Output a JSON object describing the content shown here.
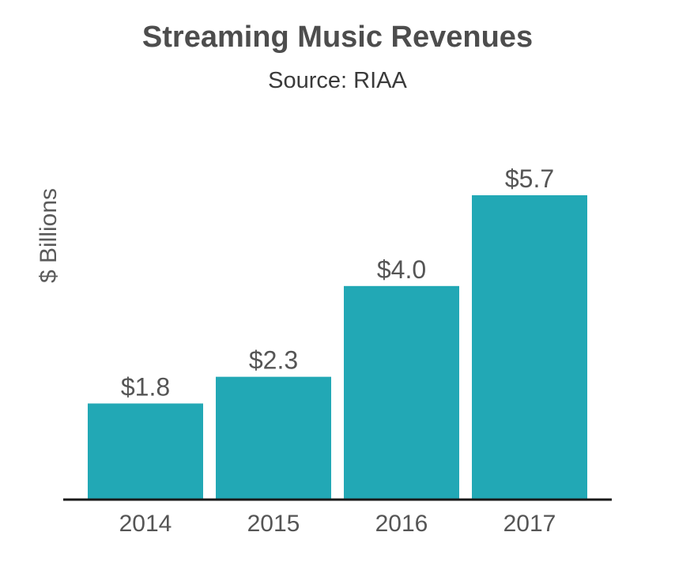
{
  "chart_data": {
    "type": "bar",
    "title": "Streaming Music Revenues",
    "subtitle": "Source: RIAA",
    "ylabel": "$ Billions",
    "categories": [
      "2014",
      "2015",
      "2016",
      "2017"
    ],
    "values": [
      1.8,
      2.3,
      4.0,
      5.7
    ],
    "data_labels": [
      "$1.8",
      "$2.3",
      "$4.0",
      "$5.7"
    ],
    "ylim": [
      0,
      5.7
    ],
    "grid": false,
    "legend": "none",
    "colors": {
      "bar": "#22a8b5",
      "baseline": "#1a1a1a",
      "label": "#555555"
    }
  }
}
